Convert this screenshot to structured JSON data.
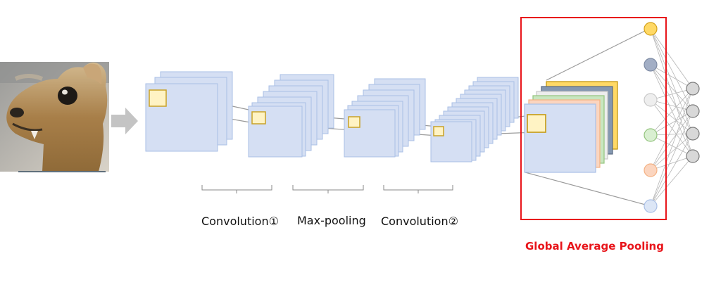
{
  "labels": {
    "conv1": "Convolution①",
    "maxpool": "Max-pooling",
    "conv2": "Convolution②",
    "gap": "Global Average Pooling"
  },
  "colors": {
    "feature_map_fill": "#d5dff3",
    "feature_map_stroke": "#a9bfe6",
    "kernel_fill": "#fff3c4",
    "kernel_stroke": "#c9a227",
    "line": "#9a9a9a",
    "arrow": "#c4c4c4",
    "gap_box": "#e8151b",
    "gap_title": "#e8151b",
    "output_node_fill": "#d8d8d8",
    "output_node_stroke": "#7a7a7a",
    "gap_maps": [
      "#ffd966",
      "#8497b0",
      "#ededed",
      "#c9e6c0",
      "#fbd5bf",
      "#d5dff3"
    ],
    "gap_map_strokes": [
      "#bf9000",
      "#5a6a82",
      "#c8c8c8",
      "#93c47d",
      "#f4b183",
      "#a9bfe6"
    ],
    "gap_nodes": [
      "#ffd966",
      "#a2aec5",
      "#eeeeee",
      "#d9efd1",
      "#fbd5bf",
      "#dce6f6"
    ],
    "gap_node_strokes": [
      "#d4a017",
      "#7d8aa3",
      "#c8c8c8",
      "#93c47d",
      "#f4b183",
      "#a9bfe6"
    ]
  },
  "icons": {
    "input_image": "animal-photo",
    "flow_arrow": "right-arrow-icon"
  }
}
